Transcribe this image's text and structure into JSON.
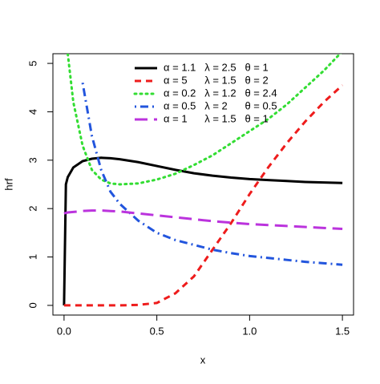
{
  "chart_data": {
    "type": "line",
    "xlabel": "x",
    "ylabel": "hrf",
    "x": [
      0,
      0.01,
      0.02,
      0.05,
      0.1,
      0.15,
      0.2,
      0.25,
      0.3,
      0.4,
      0.5,
      0.6,
      0.7,
      0.8,
      0.9,
      1.0,
      1.1,
      1.2,
      1.3,
      1.4,
      1.5
    ],
    "xlim": [
      -0.06,
      1.56
    ],
    "ylim": [
      -0.2,
      5.2
    ],
    "xticks": [
      {
        "value": 0,
        "label": "0.0"
      },
      {
        "value": 0.5,
        "label": "0.5"
      },
      {
        "value": 1,
        "label": "1.0"
      },
      {
        "value": 1.5,
        "label": "1.5"
      }
    ],
    "yticks": [
      0,
      1,
      2,
      3,
      4,
      5
    ],
    "legend": "top-right",
    "series": [
      {
        "name": "α = 1.1   λ = 2.5   θ = 1",
        "color": "#000000",
        "lty": "solid",
        "values": [
          0,
          2.5,
          2.65,
          2.85,
          2.98,
          3.03,
          3.05,
          3.04,
          3.02,
          2.96,
          2.88,
          2.8,
          2.73,
          2.68,
          2.64,
          2.61,
          2.59,
          2.57,
          2.55,
          2.54,
          2.53
        ]
      },
      {
        "name": "α = 5      λ = 1.5   θ = 2",
        "color": "#ee1c1c",
        "lty": "dashed",
        "values": [
          0,
          0,
          0,
          0,
          0,
          0,
          0,
          0,
          0,
          0.01,
          0.05,
          0.25,
          0.6,
          1.15,
          1.7,
          2.3,
          2.85,
          3.35,
          3.8,
          4.2,
          4.55
        ]
      },
      {
        "name": "α = 0.2   λ = 1.2   θ = 2.4",
        "color": "#33dd33",
        "lty": "dotted",
        "values": [
          null,
          null,
          5.2,
          4.2,
          3.3,
          2.8,
          2.6,
          2.52,
          2.5,
          2.52,
          2.6,
          2.72,
          2.9,
          3.1,
          3.35,
          3.6,
          3.85,
          4.15,
          4.5,
          4.85,
          5.25
        ]
      },
      {
        "name": "α = 0.5   λ = 2      θ = 0.5",
        "color": "#2255dd",
        "lty": "dotdash",
        "values": [
          null,
          null,
          null,
          null,
          4.6,
          3.5,
          2.8,
          2.35,
          2.1,
          1.75,
          1.5,
          1.35,
          1.25,
          1.15,
          1.08,
          1.02,
          0.98,
          0.94,
          0.9,
          0.87,
          0.84
        ]
      },
      {
        "name": "α = 1      λ = 1.5   θ = 1",
        "color": "#bb33dd",
        "lty": "longdash",
        "values": [
          1.9,
          1.91,
          1.92,
          1.93,
          1.95,
          1.96,
          1.96,
          1.95,
          1.94,
          1.9,
          1.86,
          1.82,
          1.78,
          1.74,
          1.71,
          1.68,
          1.66,
          1.64,
          1.62,
          1.6,
          1.58
        ]
      }
    ]
  }
}
